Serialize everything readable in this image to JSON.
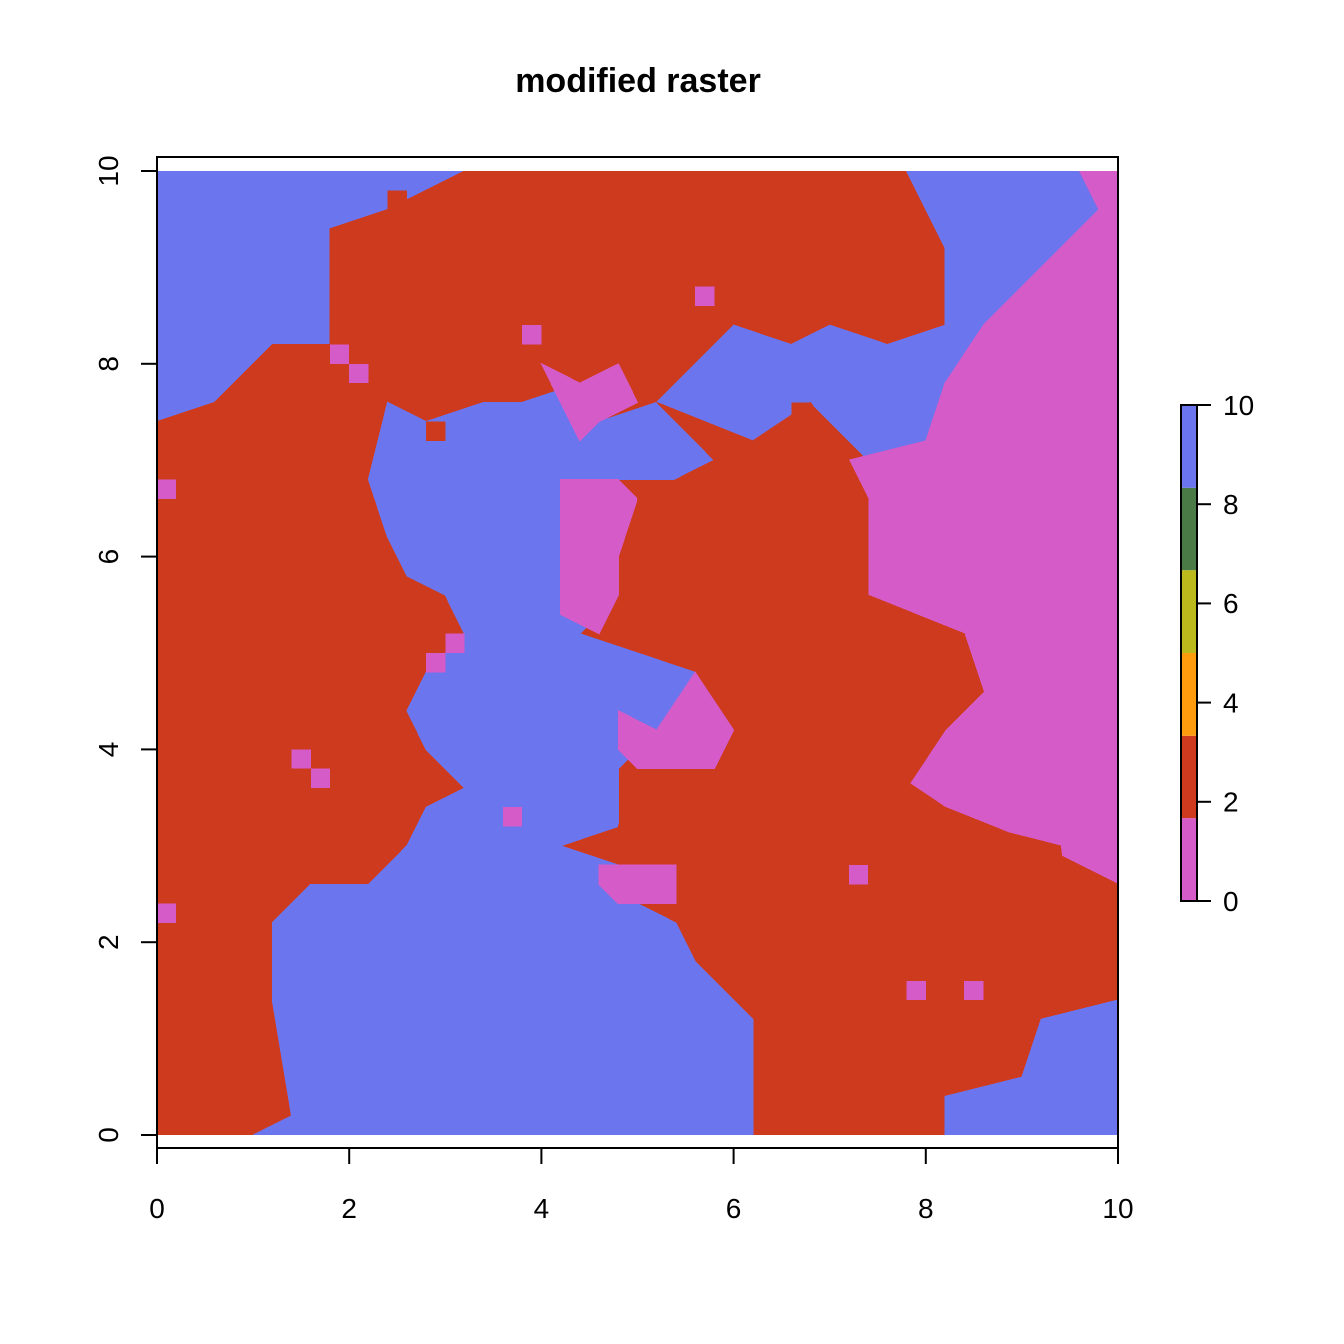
{
  "chart_data": {
    "type": "heatmap",
    "title": "modified raster",
    "xlabel": "",
    "ylabel": "",
    "xlim": [
      0,
      10
    ],
    "ylim": [
      0,
      10
    ],
    "grid": false,
    "x_ticks": [
      "0",
      "2",
      "4",
      "6",
      "8",
      "10"
    ],
    "y_ticks": [
      "0",
      "2",
      "4",
      "6",
      "8",
      "10"
    ],
    "raster_resolution": [
      50,
      50
    ],
    "legend": {
      "position": "right",
      "ticks": [
        "0",
        "2",
        "4",
        "6",
        "8",
        "10"
      ],
      "breaks": [
        0,
        1.67,
        3.33,
        5,
        6.67,
        8.33,
        10
      ],
      "colors": [
        "#d45bc8",
        "#cd3a1e",
        "#ff9c0e",
        "#bbb91c",
        "#4a7a45",
        "#6b75ee"
      ]
    },
    "classes": [
      {
        "value": 0,
        "color": "#d45bc8"
      },
      {
        "value": 2,
        "color": "#cd3a1e"
      },
      {
        "value": 10,
        "color": "#6b75ee"
      }
    ],
    "regions": [
      {
        "value": 10,
        "polygon": [
          [
            0,
            10
          ],
          [
            3.2,
            10
          ],
          [
            3.2,
            9.6
          ],
          [
            2.4,
            9.4
          ],
          [
            1.8,
            9.2
          ],
          [
            1.8,
            8.2
          ],
          [
            1.2,
            8.2
          ],
          [
            0.6,
            7.6
          ],
          [
            0,
            7.4
          ]
        ]
      },
      {
        "value": 2,
        "polygon": [
          [
            3.2,
            10
          ],
          [
            7.8,
            10
          ],
          [
            8,
            9.6
          ],
          [
            8.2,
            9
          ],
          [
            8.2,
            8.4
          ],
          [
            7.6,
            8.2
          ],
          [
            7,
            8.4
          ],
          [
            6.6,
            8.4
          ],
          [
            6,
            8.4
          ],
          [
            5.8,
            8.6
          ],
          [
            4.8,
            8.4
          ],
          [
            4.4,
            7.8
          ],
          [
            3.8,
            7.6
          ],
          [
            3.4,
            7.6
          ],
          [
            2.8,
            7.4
          ],
          [
            2.4,
            7.6
          ],
          [
            1.8,
            8.2
          ],
          [
            1.8,
            9.4
          ],
          [
            2.4,
            9.6
          ]
        ]
      },
      {
        "value": 10,
        "polygon": [
          [
            7.8,
            10
          ],
          [
            9.6,
            10
          ],
          [
            9.8,
            9.6
          ],
          [
            9.4,
            9.2
          ],
          [
            8.6,
            8.4
          ],
          [
            8.2,
            7.8
          ],
          [
            8,
            7.2
          ],
          [
            7.4,
            7
          ],
          [
            6.8,
            7.6
          ],
          [
            6.6,
            8.2
          ],
          [
            7,
            8.4
          ],
          [
            7.6,
            8.2
          ],
          [
            8.2,
            8.4
          ],
          [
            8.2,
            9.2
          ],
          [
            8,
            9.6
          ]
        ]
      },
      {
        "value": 0,
        "polygon": [
          [
            9.6,
            10
          ],
          [
            10,
            10
          ],
          [
            10,
            0.6
          ],
          [
            9.6,
            1.6
          ],
          [
            9.4,
            3
          ],
          [
            8.6,
            3.2
          ],
          [
            7.8,
            3.6
          ],
          [
            8.2,
            4.2
          ],
          [
            8.6,
            4.6
          ],
          [
            8.4,
            5.2
          ],
          [
            7.4,
            5.6
          ],
          [
            7.4,
            6.6
          ],
          [
            7.2,
            7
          ],
          [
            8,
            7.2
          ],
          [
            8.2,
            7.8
          ],
          [
            8.6,
            8.4
          ],
          [
            9.4,
            9.2
          ],
          [
            9.8,
            9.6
          ]
        ]
      },
      {
        "value": 2,
        "polygon": [
          [
            0,
            7.4
          ],
          [
            0.6,
            7.6
          ],
          [
            1.2,
            8.2
          ],
          [
            1.8,
            8.2
          ],
          [
            2.4,
            7.6
          ],
          [
            2.2,
            6.8
          ],
          [
            2.4,
            6.2
          ],
          [
            2.6,
            5.8
          ],
          [
            3,
            5.6
          ],
          [
            3.2,
            5.2
          ],
          [
            2.8,
            4.8
          ],
          [
            2.6,
            4.4
          ],
          [
            2.8,
            4
          ],
          [
            3.2,
            3.6
          ],
          [
            3.6,
            3.2
          ],
          [
            3.4,
            2.8
          ],
          [
            2.6,
            3
          ],
          [
            2.2,
            2.6
          ],
          [
            1.6,
            2.6
          ],
          [
            1.2,
            2.2
          ],
          [
            1.2,
            1.4
          ],
          [
            1.4,
            0.2
          ],
          [
            1,
            0
          ],
          [
            0,
            0
          ]
        ]
      },
      {
        "value": 10,
        "polygon": [
          [
            2.4,
            7.6
          ],
          [
            2.8,
            7.4
          ],
          [
            3.4,
            7.6
          ],
          [
            3.8,
            7.6
          ],
          [
            4.4,
            7.8
          ],
          [
            4.6,
            7.4
          ],
          [
            5.2,
            7.6
          ],
          [
            5.6,
            8
          ],
          [
            6,
            8.4
          ],
          [
            6.6,
            8.2
          ],
          [
            6.8,
            7.6
          ],
          [
            6.2,
            7.2
          ],
          [
            5.4,
            6.8
          ],
          [
            4.8,
            6.8
          ],
          [
            4.2,
            6.8
          ],
          [
            4.2,
            6
          ],
          [
            4.6,
            5.4
          ],
          [
            4.4,
            5.2
          ],
          [
            5.6,
            4.8
          ],
          [
            5.2,
            4.2
          ],
          [
            4.8,
            3.8
          ],
          [
            4.8,
            3.2
          ],
          [
            4.2,
            3
          ],
          [
            3.8,
            2.8
          ],
          [
            3.2,
            2.6
          ],
          [
            2.6,
            3
          ],
          [
            2.8,
            3.4
          ],
          [
            3.2,
            3.6
          ],
          [
            2.8,
            4
          ],
          [
            2.6,
            4.4
          ],
          [
            2.8,
            4.8
          ],
          [
            3.2,
            5.2
          ],
          [
            3,
            5.6
          ],
          [
            2.6,
            5.8
          ],
          [
            2.4,
            6.2
          ],
          [
            2.2,
            6.8
          ]
        ]
      },
      {
        "value": 0,
        "polygon": [
          [
            4,
            8
          ],
          [
            4.4,
            7.8
          ],
          [
            4.8,
            8
          ],
          [
            5,
            7.6
          ],
          [
            4.6,
            7.4
          ],
          [
            4.4,
            7.2
          ],
          [
            4.2,
            7.6
          ]
        ]
      },
      {
        "value": 0,
        "polygon": [
          [
            4.2,
            6.8
          ],
          [
            4.8,
            6.8
          ],
          [
            5,
            6.6
          ],
          [
            4.8,
            6
          ],
          [
            4.8,
            5.6
          ],
          [
            4.6,
            5.2
          ],
          [
            4.2,
            5.4
          ],
          [
            4.2,
            6
          ]
        ]
      },
      {
        "value": 2,
        "polygon": [
          [
            5.2,
            7.6
          ],
          [
            6.2,
            7.2
          ],
          [
            6.8,
            7.6
          ],
          [
            7.2,
            7
          ],
          [
            7.4,
            6.6
          ],
          [
            7.4,
            5.6
          ],
          [
            8.4,
            5.2
          ],
          [
            8.6,
            4.6
          ],
          [
            8.2,
            4.2
          ],
          [
            7.8,
            3.6
          ],
          [
            8.6,
            3.2
          ],
          [
            9.4,
            3
          ],
          [
            9.6,
            1.6
          ],
          [
            8.6,
            1.4
          ],
          [
            7.6,
            1.6
          ],
          [
            6.4,
            1.6
          ],
          [
            6.2,
            1.2
          ],
          [
            6.2,
            0
          ],
          [
            8.2,
            0
          ],
          [
            8.2,
            0.4
          ],
          [
            9,
            0.6
          ],
          [
            9.2,
            1.2
          ],
          [
            10,
            1.4
          ],
          [
            10,
            0.6
          ],
          [
            10,
            2.6
          ],
          [
            9.6,
            2.8
          ],
          [
            9.2,
            3
          ],
          [
            8.2,
            3.4
          ],
          [
            7.6,
            3.6
          ],
          [
            5.8,
            3.6
          ],
          [
            5,
            3.8
          ],
          [
            4.8,
            3.2
          ],
          [
            5,
            2.8
          ],
          [
            5.4,
            2.4
          ],
          [
            5.6,
            2
          ],
          [
            6,
            1.8
          ],
          [
            6.4,
            1.8
          ],
          [
            7,
            2
          ],
          [
            7.6,
            2.2
          ],
          [
            8,
            2.6
          ],
          [
            8.6,
            2.8
          ],
          [
            8.2,
            3.4
          ],
          [
            7.6,
            3.8
          ],
          [
            7.6,
            4.6
          ],
          [
            7.2,
            5.2
          ],
          [
            6.4,
            5.6
          ],
          [
            5.8,
            5.6
          ],
          [
            5.6,
            5
          ],
          [
            5,
            5.2
          ],
          [
            5,
            6
          ],
          [
            5,
            6.6
          ],
          [
            5.4,
            6.8
          ],
          [
            5.8,
            7
          ]
        ]
      },
      {
        "value": 10,
        "polygon": [
          [
            1,
            0
          ],
          [
            6.2,
            0
          ],
          [
            6.2,
            1.2
          ],
          [
            6,
            1.4
          ],
          [
            5.6,
            1.8
          ],
          [
            5.4,
            2.2
          ],
          [
            5,
            2.4
          ],
          [
            4.8,
            2.8
          ],
          [
            4.2,
            3
          ],
          [
            3.8,
            2.8
          ],
          [
            3.2,
            2.6
          ],
          [
            2.6,
            3
          ],
          [
            2.2,
            2.6
          ],
          [
            1.6,
            2.6
          ],
          [
            1.2,
            2.2
          ],
          [
            1.2,
            1.4
          ],
          [
            1.4,
            0.2
          ]
        ]
      },
      {
        "value": 10,
        "polygon": [
          [
            8.2,
            0
          ],
          [
            10,
            0
          ],
          [
            10,
            1.4
          ],
          [
            9.2,
            1.2
          ],
          [
            9,
            0.6
          ],
          [
            8.2,
            0.4
          ]
        ]
      },
      {
        "value": 0,
        "polygon": [
          [
            4.6,
            2.8
          ],
          [
            5.4,
            2.8
          ],
          [
            5.4,
            2.4
          ],
          [
            4.8,
            2.4
          ],
          [
            4.6,
            2.6
          ]
        ]
      },
      {
        "value": 0,
        "polygon": [
          [
            4.8,
            4.4
          ],
          [
            5.2,
            4.2
          ],
          [
            5.6,
            4.8
          ],
          [
            6,
            4.2
          ],
          [
            5.8,
            3.8
          ],
          [
            5,
            3.8
          ],
          [
            4.8,
            4
          ]
        ]
      }
    ],
    "cells": [
      {
        "value": 0,
        "x": 0,
        "y": 6.6
      },
      {
        "value": 0,
        "x": 0,
        "y": 2.2
      },
      {
        "value": 0,
        "x": 1.4,
        "y": 3.8
      },
      {
        "value": 0,
        "x": 1.6,
        "y": 3.6
      },
      {
        "value": 0,
        "x": 1.8,
        "y": 8
      },
      {
        "value": 0,
        "x": 2,
        "y": 7.8
      },
      {
        "value": 0,
        "x": 3.8,
        "y": 8.2
      },
      {
        "value": 0,
        "x": 5.6,
        "y": 8.6
      },
      {
        "value": 0,
        "x": 7.2,
        "y": 2.6
      },
      {
        "value": 0,
        "x": 7.8,
        "y": 1.4
      },
      {
        "value": 0,
        "x": 8.4,
        "y": 1.4
      },
      {
        "value": 0,
        "x": 3.6,
        "y": 3.2
      },
      {
        "value": 0,
        "x": 2.8,
        "y": 4.8
      },
      {
        "value": 0,
        "x": 3,
        "y": 5
      },
      {
        "value": 2,
        "x": 2.4,
        "y": 9.6
      },
      {
        "value": 2,
        "x": 6.6,
        "y": 7.4
      },
      {
        "value": 2,
        "x": 2.8,
        "y": 7.2
      }
    ]
  }
}
